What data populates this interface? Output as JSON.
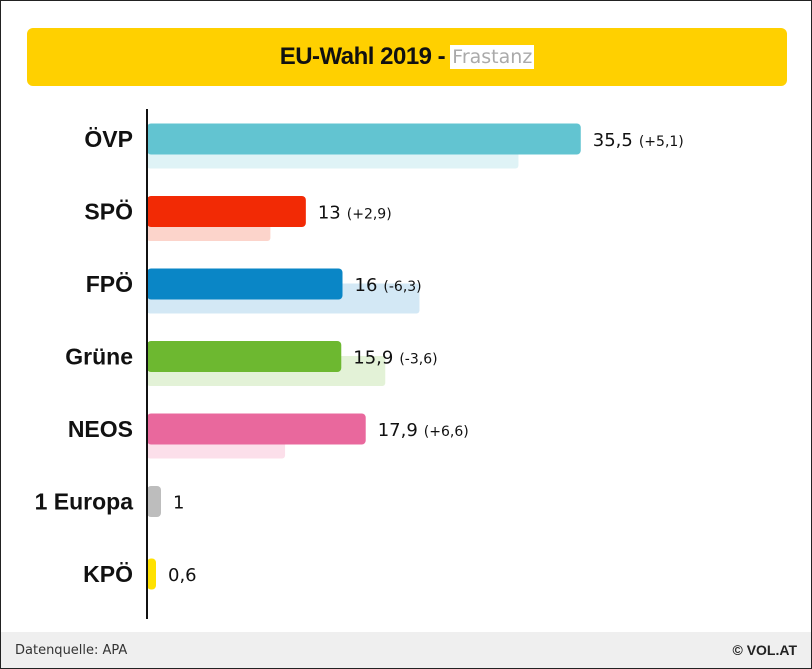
{
  "header": {
    "title": "EU-Wahl 2019 -",
    "subtitle": "Frastanz"
  },
  "footer": {
    "source": "Datenquelle: APA",
    "brand": "© VOL.AT"
  },
  "chart_data": {
    "type": "bar",
    "orientation": "horizontal",
    "categories": [
      "ÖVP",
      "SPÖ",
      "FPÖ",
      "Grüne",
      "NEOS",
      "1 Europa",
      "KPÖ"
    ],
    "series": [
      {
        "values": [
          35.5,
          13,
          16,
          15.9,
          17.9,
          1,
          0.6
        ],
        "value_labels": [
          "35,5",
          "13",
          "16",
          "15,9",
          "17,9",
          "1",
          "0,6"
        ]
      },
      {
        "values": [
          30.4,
          10.1,
          22.3,
          19.5,
          11.3,
          null,
          null
        ]
      }
    ],
    "change_labels": [
      "(+5,1)",
      "(+2,9)",
      "(-6,3)",
      "(-3,6)",
      "(+6,6)",
      "",
      ""
    ],
    "colors": [
      "#62c4d1",
      "#f22a05",
      "#0a86c6",
      "#6db830",
      "#e9689d",
      "#bdbdbd",
      "#ffe100"
    ],
    "previous_colors": [
      "#dff3f6",
      "#fcd4cb",
      "#d3e8f5",
      "#e3f2d7",
      "#fcdfea",
      "#eeeeee",
      "#fff6b3"
    ],
    "xlim": [
      0,
      40
    ],
    "grid": false,
    "legend": "none"
  }
}
